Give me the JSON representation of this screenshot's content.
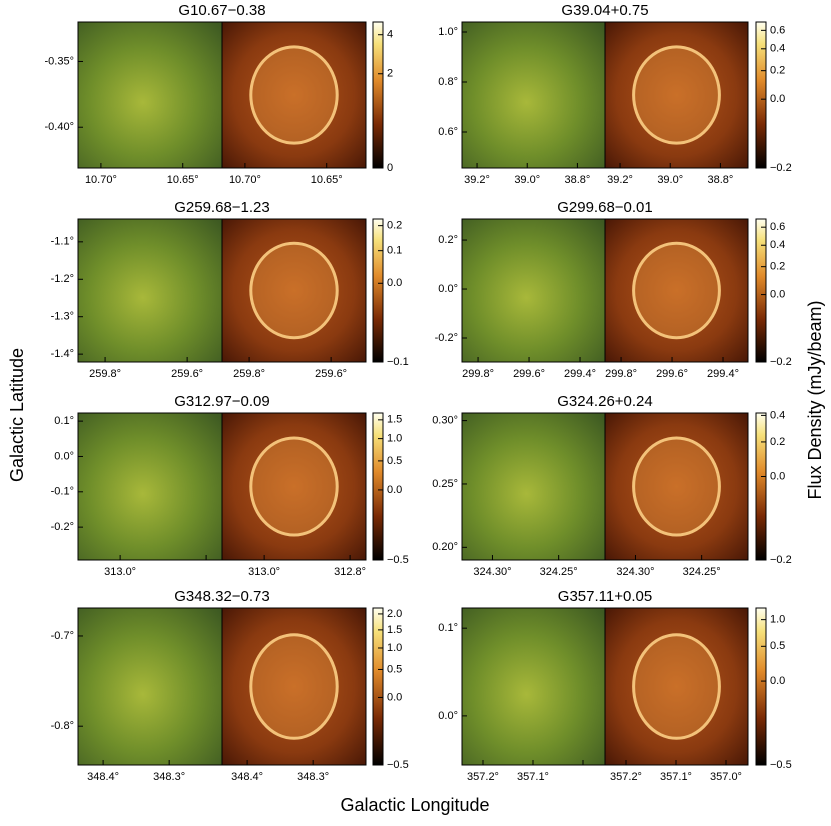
{
  "figure": {
    "xlabel": "Galactic Longitude",
    "ylabel": "Galactic Latitude",
    "colorbar_label": "Flux Density (mJy/beam)"
  },
  "chart_data": [
    {
      "type": "image",
      "title": "G10.67−0.38",
      "xlim": [
        10.714,
        10.626
      ],
      "ylim": [
        -0.431,
        -0.32
      ],
      "xticks": [
        {
          "value": 10.7,
          "label": "10.70°"
        },
        {
          "value": 10.65,
          "label": "10.65°"
        }
      ],
      "yticks": [
        {
          "value": -0.35,
          "label": "-0.35°"
        },
        {
          "value": -0.4,
          "label": "-0.40°"
        }
      ],
      "clim": [
        0,
        4.8
      ],
      "colorbar_scale": "sqrt",
      "cticks": [
        0,
        2,
        4
      ]
    },
    {
      "type": "image",
      "title": "G39.04+0.75",
      "xlim": [
        39.26,
        38.69
      ],
      "ylim": [
        0.456,
        1.04
      ],
      "xticks": [
        {
          "value": 39.2,
          "label": "39.2°"
        },
        {
          "value": 39.0,
          "label": "39.0°"
        },
        {
          "value": 38.8,
          "label": "38.8°"
        }
      ],
      "yticks": [
        {
          "value": 0.6,
          "label": "0.6°"
        },
        {
          "value": 0.8,
          "label": "0.8°"
        },
        {
          "value": 1.0,
          "label": "1.0°"
        }
      ],
      "clim": [
        -0.2,
        0.7
      ],
      "colorbar_scale": "sqrt",
      "cticks": [
        {
          "value": -0.2,
          "label": "−0.2"
        },
        {
          "value": 0,
          "label": "0.0"
        },
        0.2,
        0.4,
        0.6
      ]
    },
    {
      "type": "image",
      "title": "G259.68−1.23",
      "xlim": [
        259.866,
        259.515
      ],
      "ylim": [
        -1.421,
        -1.039
      ],
      "xticks": [
        {
          "value": 259.8,
          "label": "259.8°"
        },
        {
          "value": 259.6,
          "label": "259.6°"
        }
      ],
      "yticks": [
        {
          "value": -1.4,
          "label": "-1.4°"
        },
        {
          "value": -1.3,
          "label": "-1.3°"
        },
        {
          "value": -1.2,
          "label": "-1.2°"
        },
        {
          "value": -1.1,
          "label": "-1.1°"
        }
      ],
      "clim": [
        -0.1,
        0.23
      ],
      "colorbar_scale": "sqrt",
      "cticks": [
        {
          "value": -0.1,
          "label": "−0.1"
        },
        {
          "value": 0,
          "label": "0.0"
        },
        0.1,
        0.2
      ]
    },
    {
      "type": "image",
      "title": "G299.68−0.01",
      "xlim": [
        299.863,
        299.302
      ],
      "ylim": [
        -0.298,
        0.286
      ],
      "xticks": [
        {
          "value": 299.8,
          "label": "299.8°"
        },
        {
          "value": 299.6,
          "label": "299.6°"
        },
        {
          "value": 299.4,
          "label": "299.4°"
        }
      ],
      "yticks": [
        {
          "value": -0.2,
          "label": "-0.2°"
        },
        {
          "value": 0,
          "label": "0.0°"
        },
        {
          "value": 0.2,
          "label": "0.2°"
        }
      ],
      "clim": [
        -0.2,
        0.7
      ],
      "colorbar_scale": "sqrt",
      "cticks": [
        {
          "value": -0.2,
          "label": "−0.2"
        },
        {
          "value": 0,
          "label": "0.0"
        },
        0.2,
        0.4,
        0.6
      ]
    },
    {
      "type": "image",
      "title": "G312.97−0.09",
      "xlim": [
        313.098,
        312.763
      ],
      "ylim": [
        -0.293,
        0.123
      ],
      "xticks": [
        {
          "value": 313.0,
          "label": "313.0°"
        },
        {
          "value": 312.8,
          "label": "312.8°"
        }
      ],
      "yticks": [
        {
          "value": -0.2,
          "label": "-0.2°"
        },
        {
          "value": -0.1,
          "label": "-0.1°"
        },
        {
          "value": 0,
          "label": "0.0°"
        },
        {
          "value": 0.1,
          "label": "0.1°"
        }
      ],
      "clim": [
        -0.5,
        1.7
      ],
      "colorbar_scale": "sqrt",
      "cticks": [
        {
          "value": -0.5,
          "label": "−0.5"
        },
        {
          "value": 0,
          "label": "0.0"
        },
        0.5,
        {
          "value": 1,
          "label": "1.0"
        },
        1.5
      ]
    },
    {
      "type": "image",
      "title": "G324.26+0.24",
      "xlim": [
        324.323,
        324.215
      ],
      "ylim": [
        0.19,
        0.306
      ],
      "xticks": [
        {
          "value": 324.3,
          "label": "324.30°"
        },
        {
          "value": 324.25,
          "label": "324.25°"
        }
      ],
      "yticks": [
        {
          "value": 0.2,
          "label": "0.20°"
        },
        {
          "value": 0.25,
          "label": "0.25°"
        },
        {
          "value": 0.3,
          "label": "0.30°"
        }
      ],
      "clim": [
        -0.2,
        0.42
      ],
      "colorbar_scale": "sqrt",
      "cticks": [
        {
          "value": -0.2,
          "label": "−0.2"
        },
        {
          "value": 0,
          "label": "0.0"
        },
        0.2,
        0.4
      ]
    },
    {
      "type": "image",
      "title": "G348.32−0.73",
      "xlim": [
        348.438,
        348.22
      ],
      "ylim": [
        -0.843,
        -0.669
      ],
      "xticks": [
        {
          "value": 348.4,
          "label": "348.4°"
        },
        {
          "value": 348.3,
          "label": "348.3°"
        }
      ],
      "yticks": [
        {
          "value": -0.8,
          "label": "-0.8°"
        },
        {
          "value": -0.7,
          "label": "-0.7°"
        }
      ],
      "clim": [
        -0.5,
        2.2
      ],
      "colorbar_scale": "sqrt",
      "cticks": [
        {
          "value": -0.5,
          "label": "−0.5"
        },
        {
          "value": 0,
          "label": "0.0"
        },
        0.5,
        {
          "value": 1,
          "label": "1.0"
        },
        1.5,
        {
          "value": 2,
          "label": "2.0"
        }
      ]
    },
    {
      "type": "image",
      "title": "G357.11+0.05",
      "xlim": [
        357.242,
        356.956
      ],
      "ylim": [
        -0.056,
        0.123
      ],
      "xticks": [
        {
          "value": 357.2,
          "label": "357.2°"
        },
        {
          "value": 357.1,
          "label": "357.1°"
        },
        {
          "value": 357.0,
          "label": "357.0°"
        }
      ],
      "yticks": [
        {
          "value": 0,
          "label": "0.0°"
        },
        {
          "value": 0.1,
          "label": "0.1°"
        }
      ],
      "clim": [
        -0.5,
        1.25
      ],
      "colorbar_scale": "sqrt",
      "cticks": [
        {
          "value": -0.5,
          "label": "−0.5"
        },
        {
          "value": 0,
          "label": "0.0"
        },
        0.5,
        {
          "value": 1,
          "label": "1.0"
        }
      ]
    }
  ]
}
